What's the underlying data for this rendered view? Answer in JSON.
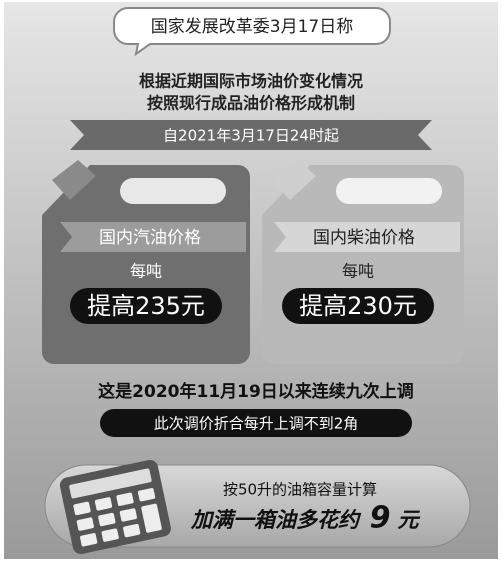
{
  "header": {
    "title": "国家发展改革委3月17日称"
  },
  "intro": [
    "根据近期国际市场油价变化情况",
    "按照现行成品油价格形成机制"
  ],
  "banner": "自2021年3月17日24时起",
  "cans": [
    {
      "label": "国内汽油价格",
      "unit": "每吨",
      "change": "提高235元"
    },
    {
      "label": "国内柴油价格",
      "unit": "每吨",
      "change": "提高230元"
    }
  ],
  "note": "这是2020年11月19日以来连续九次上调",
  "per_liter": "此次调价折合每升上调不到2角",
  "calc": {
    "line1": "按50升的油箱容量计算",
    "line2": "加满一箱油多花约",
    "amount": "9",
    "unit": "元"
  }
}
